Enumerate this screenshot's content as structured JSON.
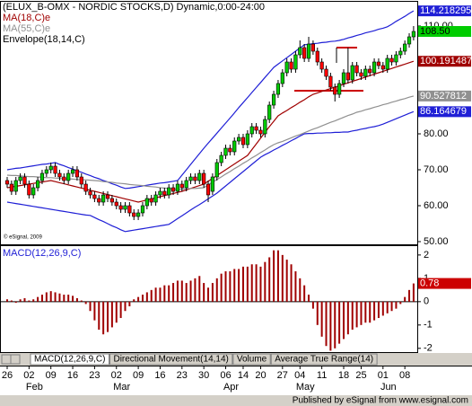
{
  "chart_data": [
    {
      "type": "candlestick",
      "title": "(ELUX_B-OMX - NORDIC STOCKS,D) Dynamic,0:00-24:00",
      "categories": [
        "26",
        null,
        null,
        null,
        null,
        "02",
        null,
        null,
        null,
        null,
        "09",
        null,
        null,
        null,
        null,
        "16",
        null,
        null,
        null,
        null,
        "23",
        null,
        null,
        null,
        null,
        "02",
        null,
        null,
        null,
        null,
        "09",
        null,
        null,
        null,
        null,
        "16",
        null,
        null,
        null,
        null,
        "23",
        null,
        null,
        null,
        null,
        "30",
        null,
        null,
        null,
        null,
        "06",
        null,
        null,
        null,
        "14",
        null,
        null,
        null,
        "20",
        null,
        null,
        null,
        null,
        "27",
        null,
        null,
        null,
        "04",
        null,
        null,
        null,
        null,
        "11",
        null,
        null,
        null,
        null,
        "18",
        null,
        null,
        null,
        "25",
        null,
        null,
        null,
        null,
        "01",
        null,
        null,
        null,
        null,
        "08",
        null,
        null
      ],
      "months": [
        "Feb",
        "Mar",
        "Apr",
        "May",
        "Jun"
      ],
      "up_color": "#00cc00",
      "down_color": "#ff0000",
      "ohlc": [
        [
          67,
          68,
          65,
          66
        ],
        [
          66,
          67,
          63,
          64
        ],
        [
          64,
          68,
          63,
          67
        ],
        [
          67,
          69,
          66,
          68
        ],
        [
          68,
          69,
          65,
          66
        ],
        [
          66,
          67,
          62,
          63
        ],
        [
          63,
          66,
          62,
          65
        ],
        [
          65,
          68,
          64,
          67
        ],
        [
          67,
          70,
          66,
          69
        ],
        [
          69,
          71,
          68,
          70
        ],
        [
          70,
          72,
          69,
          71
        ],
        [
          71,
          72,
          68,
          69
        ],
        [
          69,
          70,
          67,
          68
        ],
        [
          68,
          69,
          66,
          67
        ],
        [
          67,
          70,
          66,
          69
        ],
        [
          69,
          71,
          68,
          70
        ],
        [
          70,
          71,
          67,
          68
        ],
        [
          68,
          69,
          65,
          66
        ],
        [
          66,
          67,
          63,
          64
        ],
        [
          64,
          65,
          62,
          63
        ],
        [
          63,
          64,
          61,
          62
        ],
        [
          62,
          63,
          60,
          61
        ],
        [
          61,
          64,
          60,
          63
        ],
        [
          63,
          64,
          61,
          62
        ],
        [
          62,
          63,
          60,
          61
        ],
        [
          61,
          62,
          59,
          60
        ],
        [
          60,
          61,
          58,
          59
        ],
        [
          59,
          61,
          58,
          60
        ],
        [
          60,
          61,
          57,
          58
        ],
        [
          58,
          59,
          56,
          57
        ],
        [
          57,
          59,
          56,
          58
        ],
        [
          58,
          61,
          57,
          60
        ],
        [
          60,
          63,
          59,
          62
        ],
        [
          62,
          63,
          60,
          61
        ],
        [
          61,
          64,
          60,
          63
        ],
        [
          63,
          65,
          62,
          64
        ],
        [
          64,
          65,
          62,
          63
        ],
        [
          63,
          66,
          62,
          65
        ],
        [
          65,
          66,
          63,
          64
        ],
        [
          64,
          67,
          63,
          66
        ],
        [
          66,
          67,
          64,
          65
        ],
        [
          65,
          68,
          64,
          67
        ],
        [
          67,
          69,
          66,
          68
        ],
        [
          68,
          69,
          66,
          67
        ],
        [
          67,
          70,
          66,
          69
        ],
        [
          69,
          70,
          65,
          66
        ],
        [
          66,
          67,
          61,
          63
        ],
        [
          64,
          69,
          63,
          68
        ],
        [
          68,
          73,
          67,
          72
        ],
        [
          72,
          75,
          71,
          74
        ],
        [
          74,
          77,
          73,
          76
        ],
        [
          76,
          77,
          74,
          75
        ],
        [
          75,
          79,
          74,
          78
        ],
        [
          78,
          80,
          77,
          79
        ],
        [
          79,
          80,
          76,
          77
        ],
        [
          77,
          81,
          76,
          80
        ],
        [
          80,
          83,
          79,
          82
        ],
        [
          82,
          83,
          80,
          81
        ],
        [
          81,
          82,
          79,
          80
        ],
        [
          80,
          85,
          79,
          84
        ],
        [
          84,
          89,
          83,
          88
        ],
        [
          88,
          92,
          87,
          91
        ],
        [
          91,
          95,
          90,
          94
        ],
        [
          94,
          98,
          93,
          97
        ],
        [
          97,
          101,
          96,
          100
        ],
        [
          100,
          101,
          97,
          98
        ],
        [
          98,
          103,
          97,
          102
        ],
        [
          102,
          106,
          101,
          104
        ],
        [
          104,
          105,
          100,
          101
        ],
        [
          101,
          107,
          100,
          105
        ],
        [
          105,
          106,
          102,
          103
        ],
        [
          103,
          104,
          99,
          100
        ],
        [
          100,
          101,
          97,
          98
        ],
        [
          98,
          99,
          95,
          96
        ],
        [
          96,
          97,
          92,
          93
        ],
        [
          93,
          94,
          89,
          91
        ],
        [
          91,
          95,
          90,
          94
        ],
        [
          94,
          98,
          93,
          97
        ],
        [
          97,
          104,
          94,
          95
        ],
        [
          95,
          100,
          94,
          99
        ],
        [
          99,
          100,
          96,
          97
        ],
        [
          97,
          98,
          95,
          96
        ],
        [
          96,
          99,
          95,
          98
        ],
        [
          98,
          99,
          96,
          97
        ],
        [
          97,
          101,
          96,
          100
        ],
        [
          100,
          101,
          98,
          99
        ],
        [
          99,
          100,
          97,
          98
        ],
        [
          98,
          102,
          97,
          101
        ],
        [
          101,
          102,
          99,
          100
        ],
        [
          100,
          103,
          99,
          102
        ],
        [
          102,
          104,
          101,
          103
        ],
        [
          103,
          106,
          102,
          105
        ],
        [
          105,
          108,
          104,
          107
        ],
        [
          107,
          110,
          106,
          108.5
        ]
      ],
      "close_label": "108.50",
      "series": [
        {
          "name": "MA(18,C)e",
          "color": "#a00000",
          "values": [
            65,
            65.2,
            65.4,
            65.6,
            65.8,
            66,
            66.2,
            66.4,
            66.6,
            66.8,
            67,
            66.7,
            66.4,
            66.1,
            65.8,
            65.5,
            65.2,
            64.9,
            64.6,
            64.3,
            64,
            63.7,
            63.4,
            63.1,
            62.8,
            62.5,
            62.2,
            61.9,
            61.6,
            61.3,
            61,
            61.3,
            61.6,
            61.9,
            62.2,
            62.5,
            62.8,
            63.1,
            63.4,
            63.7,
            64,
            64.4,
            64.8,
            65.2,
            65.6,
            66,
            66.8,
            67.6,
            68.4,
            69.2,
            70,
            70.8,
            71.6,
            72.4,
            73.2,
            74,
            75.6,
            77.2,
            78.8,
            80.4,
            82,
            83.5,
            85,
            85.8,
            86.5,
            87.3,
            88,
            88.8,
            89.5,
            90.3,
            91,
            91.4,
            91.8,
            92.2,
            92.6,
            93,
            93.4,
            93.8,
            94.2,
            94.6,
            95,
            95.4,
            95.8,
            96.2,
            96.6,
            97,
            97.4,
            97.8,
            98.2,
            98.6,
            99,
            99.4,
            99.8,
            100.191487
          ]
        },
        {
          "name": "MA(55,C)e",
          "color": "#909090",
          "values": [
            68.5,
            68.4,
            68.4,
            68.3,
            68.2,
            68.1,
            68.1,
            68,
            67.9,
            67.8,
            67.8,
            67.7,
            67.6,
            67.5,
            67.5,
            67.4,
            67.3,
            67.2,
            67.2,
            67.1,
            67,
            66.9,
            66.7,
            66.6,
            66.5,
            66.3,
            66.2,
            66.1,
            65.9,
            65.8,
            65.7,
            65.6,
            65.4,
            65.3,
            65.2,
            65,
            64.9,
            64.8,
            64.6,
            64.5,
            64.6,
            64.7,
            64.8,
            64.8,
            64.9,
            65,
            65.8,
            66.5,
            67.3,
            68,
            68.8,
            69.5,
            70.3,
            71,
            71.8,
            72.5,
            73.3,
            74,
            74.8,
            75.5,
            76.3,
            77,
            77.5,
            77.9,
            78.4,
            78.9,
            79.4,
            79.8,
            80.3,
            80.8,
            81.3,
            81.7,
            82.2,
            82.7,
            83.2,
            83.6,
            84.1,
            84.6,
            85.1,
            85.5,
            86,
            86.3,
            86.7,
            87,
            87.4,
            87.7,
            88.1,
            88.4,
            88.8,
            89.1,
            89.5,
            89.8,
            90.2,
            90.527812
          ]
        }
      ],
      "envelope": {
        "name": "Envelope(18,14,C)",
        "color": "#1f1fd6",
        "upper": [
          70,
          70.2,
          70.4,
          70.5,
          70.7,
          70.9,
          71.1,
          71.3,
          71.5,
          71.6,
          71.8,
          72,
          71.5,
          71.1,
          70.6,
          70.2,
          69.7,
          69.3,
          68.8,
          68.4,
          67.9,
          67.5,
          67,
          66.6,
          66.1,
          65.7,
          65.2,
          64.8,
          64.9,
          65.1,
          65.3,
          65.5,
          65.7,
          65.9,
          66.1,
          66.3,
          66.4,
          66.6,
          66.8,
          67,
          68.5,
          70,
          71.5,
          73,
          74.5,
          76,
          77.4,
          78.8,
          80.2,
          81.6,
          83,
          84.4,
          85.8,
          87.3,
          88.7,
          90.1,
          91.5,
          92.9,
          94.3,
          95.7,
          97.1,
          98.5,
          99.4,
          100.3,
          101.2,
          102.1,
          103,
          103.9,
          104.8,
          104.9,
          105.1,
          105.2,
          105.4,
          105.5,
          105.7,
          105.8,
          106,
          106.3,
          106.7,
          107,
          107.4,
          107.7,
          108.1,
          108.4,
          108.7,
          109.1,
          109.4,
          109.8,
          110.5,
          111.3,
          112,
          112.7,
          113.5,
          114.218295
        ],
        "lower": [
          61,
          60.8,
          60.6,
          60.4,
          60.2,
          60,
          59.8,
          59.6,
          59.4,
          59.2,
          59,
          58.8,
          58.6,
          58.4,
          58.2,
          58,
          57.8,
          57.6,
          57.4,
          57.3,
          56.7,
          56.1,
          55.6,
          55,
          54.4,
          53.9,
          53.3,
          52.8,
          53,
          53.2,
          53.4,
          53.6,
          53.8,
          54,
          54.2,
          54.4,
          54.6,
          54.8,
          55.6,
          56.4,
          57.2,
          58,
          58.8,
          59.6,
          60.3,
          61.1,
          61.9,
          62.7,
          63.5,
          64.5,
          65.5,
          66.5,
          67.5,
          68.5,
          69.5,
          70.5,
          71.5,
          72.5,
          73.5,
          74.2,
          74.8,
          75.5,
          76.1,
          76.8,
          77.4,
          78.1,
          78.7,
          79.4,
          80,
          80.1,
          80.1,
          80.2,
          80.2,
          80.3,
          80.3,
          80.4,
          80.4,
          80.5,
          80.5,
          80.8,
          81,
          81.3,
          81.5,
          81.8,
          82,
          82.3,
          82.7,
          83.2,
          83.7,
          84.2,
          84.7,
          85.2,
          85.7,
          86.164679
        ]
      },
      "ylim": [
        49.25,
        116.75
      ],
      "yticks": [
        {
          "value": 50,
          "label": "50.00"
        },
        {
          "value": 60,
          "label": "60.00"
        },
        {
          "value": 70,
          "label": "70.00"
        },
        {
          "value": 80,
          "label": "80.00"
        },
        {
          "value": 90,
          "label": "90.00"
        },
        {
          "value": 100,
          "label": "100.00"
        },
        {
          "value": 110,
          "label": "110.00"
        }
      ],
      "watermark": "© eSignal, 2009"
    },
    {
      "type": "bar",
      "title": "MACD(12,26,9,C)",
      "color": "#a00000",
      "values": [
        0.1,
        0.05,
        -0.05,
        0.1,
        0.15,
        0.05,
        0.1,
        0.2,
        0.3,
        0.4,
        0.45,
        0.4,
        0.35,
        0.3,
        0.3,
        0.25,
        0.15,
        0.05,
        -0.1,
        -0.4,
        -0.8,
        -1.2,
        -1.4,
        -1.3,
        -1.1,
        -0.9,
        -0.7,
        -0.4,
        -0.2,
        0.1,
        0.2,
        0.3,
        0.4,
        0.5,
        0.6,
        0.6,
        0.7,
        0.7,
        0.8,
        0.9,
        0.9,
        0.8,
        0.9,
        1.0,
        1.1,
        0.8,
        0.6,
        0.8,
        1.0,
        1.2,
        1.3,
        1.3,
        1.4,
        1.4,
        1.5,
        1.5,
        1.6,
        1.6,
        1.5,
        1.7,
        1.9,
        2.2,
        2.2,
        2.0,
        1.8,
        1.6,
        1.3,
        1.0,
        0.7,
        0.3,
        -0.3,
        -1.0,
        -1.5,
        -1.9,
        -2.1,
        -2.0,
        -1.8,
        -1.6,
        -1.4,
        -1.2,
        -1.1,
        -1.0,
        -0.9,
        -0.9,
        -0.8,
        -0.7,
        -0.6,
        -0.5,
        -0.4,
        -0.3,
        -0.1,
        0.2,
        0.5,
        0.78
      ],
      "ylim": [
        -2.2,
        2.38
      ],
      "yticks": [
        2,
        1,
        0,
        -1,
        -2
      ]
    }
  ],
  "tabs": [
    "MACD(12,26,9,C)",
    "Directional Movement(14,14)",
    "Volume",
    "Average True Range(14)"
  ],
  "footer": "Published by eSignal from www.esignal.com"
}
